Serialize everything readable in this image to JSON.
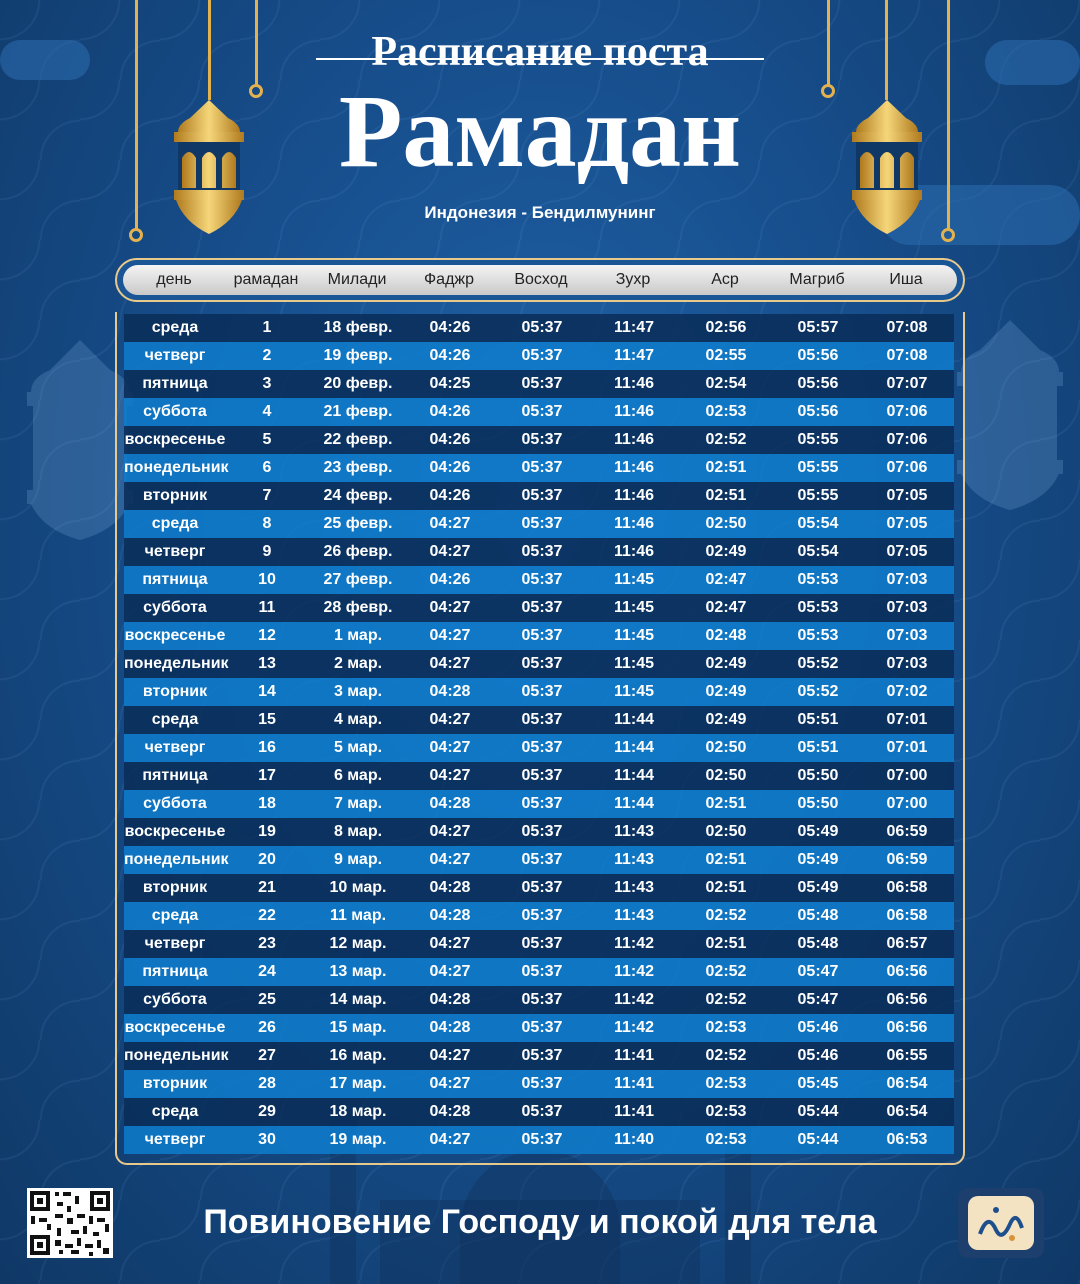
{
  "header": {
    "title_small": "Расписание поста",
    "title_big": "Рамадан",
    "location": "Индонезия - Бендилмунинг"
  },
  "columns": [
    "день",
    "рамадан",
    "Милади",
    "Фаджр",
    "Восход",
    "Зухр",
    "Аср",
    "Магриб",
    "Иша"
  ],
  "rows": [
    [
      "среда",
      "1",
      "18 февр.",
      "04:26",
      "05:37",
      "11:47",
      "02:56",
      "05:57",
      "07:08"
    ],
    [
      "четверг",
      "2",
      "19 февр.",
      "04:26",
      "05:37",
      "11:47",
      "02:55",
      "05:56",
      "07:08"
    ],
    [
      "пятница",
      "3",
      "20 февр.",
      "04:25",
      "05:37",
      "11:46",
      "02:54",
      "05:56",
      "07:07"
    ],
    [
      "суббота",
      "4",
      "21 февр.",
      "04:26",
      "05:37",
      "11:46",
      "02:53",
      "05:56",
      "07:06"
    ],
    [
      "воскресенье",
      "5",
      "22 февр.",
      "04:26",
      "05:37",
      "11:46",
      "02:52",
      "05:55",
      "07:06"
    ],
    [
      "понедельник",
      "6",
      "23 февр.",
      "04:26",
      "05:37",
      "11:46",
      "02:51",
      "05:55",
      "07:06"
    ],
    [
      "вторник",
      "7",
      "24 февр.",
      "04:26",
      "05:37",
      "11:46",
      "02:51",
      "05:55",
      "07:05"
    ],
    [
      "среда",
      "8",
      "25 февр.",
      "04:27",
      "05:37",
      "11:46",
      "02:50",
      "05:54",
      "07:05"
    ],
    [
      "четверг",
      "9",
      "26 февр.",
      "04:27",
      "05:37",
      "11:46",
      "02:49",
      "05:54",
      "07:05"
    ],
    [
      "пятница",
      "10",
      "27 февр.",
      "04:26",
      "05:37",
      "11:45",
      "02:47",
      "05:53",
      "07:03"
    ],
    [
      "суббота",
      "11",
      "28 февр.",
      "04:27",
      "05:37",
      "11:45",
      "02:47",
      "05:53",
      "07:03"
    ],
    [
      "воскресенье",
      "12",
      "1 мар.",
      "04:27",
      "05:37",
      "11:45",
      "02:48",
      "05:53",
      "07:03"
    ],
    [
      "понедельник",
      "13",
      "2 мар.",
      "04:27",
      "05:37",
      "11:45",
      "02:49",
      "05:52",
      "07:03"
    ],
    [
      "вторник",
      "14",
      "3 мар.",
      "04:28",
      "05:37",
      "11:45",
      "02:49",
      "05:52",
      "07:02"
    ],
    [
      "среда",
      "15",
      "4 мар.",
      "04:27",
      "05:37",
      "11:44",
      "02:49",
      "05:51",
      "07:01"
    ],
    [
      "четверг",
      "16",
      "5 мар.",
      "04:27",
      "05:37",
      "11:44",
      "02:50",
      "05:51",
      "07:01"
    ],
    [
      "пятница",
      "17",
      "6 мар.",
      "04:27",
      "05:37",
      "11:44",
      "02:50",
      "05:50",
      "07:00"
    ],
    [
      "суббота",
      "18",
      "7 мар.",
      "04:28",
      "05:37",
      "11:44",
      "02:51",
      "05:50",
      "07:00"
    ],
    [
      "воскресенье",
      "19",
      "8 мар.",
      "04:27",
      "05:37",
      "11:43",
      "02:50",
      "05:49",
      "06:59"
    ],
    [
      "понедельник",
      "20",
      "9 мар.",
      "04:27",
      "05:37",
      "11:43",
      "02:51",
      "05:49",
      "06:59"
    ],
    [
      "вторник",
      "21",
      "10 мар.",
      "04:28",
      "05:37",
      "11:43",
      "02:51",
      "05:49",
      "06:58"
    ],
    [
      "среда",
      "22",
      "11 мар.",
      "04:28",
      "05:37",
      "11:43",
      "02:52",
      "05:48",
      "06:58"
    ],
    [
      "четверг",
      "23",
      "12 мар.",
      "04:27",
      "05:37",
      "11:42",
      "02:51",
      "05:48",
      "06:57"
    ],
    [
      "пятница",
      "24",
      "13 мар.",
      "04:27",
      "05:37",
      "11:42",
      "02:52",
      "05:47",
      "06:56"
    ],
    [
      "суббота",
      "25",
      "14 мар.",
      "04:28",
      "05:37",
      "11:42",
      "02:52",
      "05:47",
      "06:56"
    ],
    [
      "воскресенье",
      "26",
      "15 мар.",
      "04:28",
      "05:37",
      "11:42",
      "02:53",
      "05:46",
      "06:56"
    ],
    [
      "понедельник",
      "27",
      "16 мар.",
      "04:27",
      "05:37",
      "11:41",
      "02:52",
      "05:46",
      "06:55"
    ],
    [
      "вторник",
      "28",
      "17 мар.",
      "04:27",
      "05:37",
      "11:41",
      "02:53",
      "05:45",
      "06:54"
    ],
    [
      "среда",
      "29",
      "18 мар.",
      "04:28",
      "05:37",
      "11:41",
      "02:53",
      "05:44",
      "06:54"
    ],
    [
      "четверг",
      "30",
      "19 мар.",
      "04:27",
      "05:37",
      "11:40",
      "02:53",
      "05:44",
      "06:53"
    ]
  ],
  "footer": {
    "slogan": "Повиновение Господу и покой для тела"
  },
  "colors": {
    "gold": "#e3b24f",
    "row_dark": "#092d58",
    "row_light": "#0e7dcd"
  }
}
